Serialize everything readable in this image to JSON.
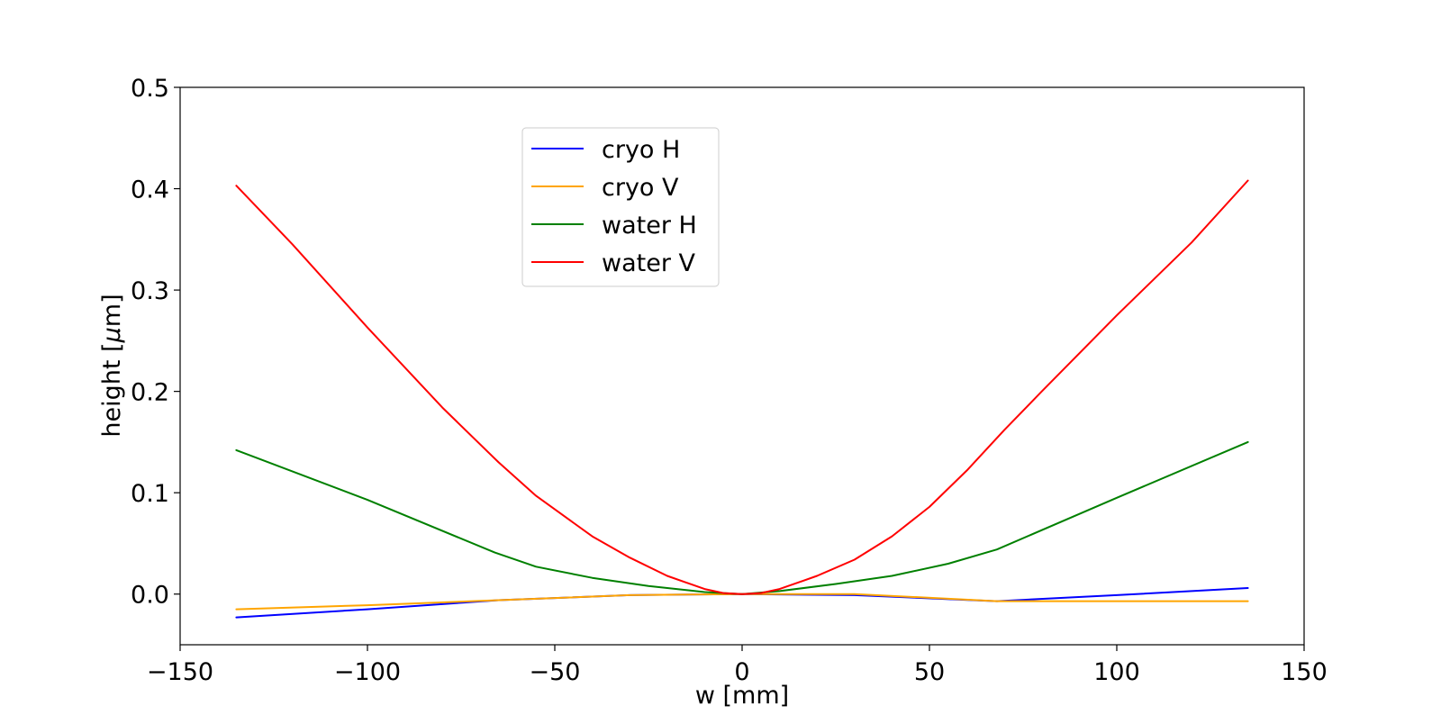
{
  "chart_data": {
    "type": "line",
    "title": "",
    "xlabel": "w [mm]",
    "ylabel_prefix": "height [",
    "ylabel_mu": "μ",
    "ylabel_suffix": "m]",
    "xlim": [
      -150,
      150
    ],
    "ylim": [
      -0.05,
      0.5
    ],
    "xticks": [
      -150,
      -100,
      -50,
      0,
      50,
      100,
      150
    ],
    "xtick_labels": [
      "−150",
      "−100",
      "−50",
      "0",
      "50",
      "100",
      "150"
    ],
    "yticks": [
      0.0,
      0.1,
      0.2,
      0.3,
      0.4,
      0.5
    ],
    "ytick_labels": [
      "0.0",
      "0.1",
      "0.2",
      "0.3",
      "0.4",
      "0.5"
    ],
    "grid": false,
    "legend_position": "upper-center-left",
    "series": [
      {
        "name": "cryo H",
        "color": "#0000ff",
        "x": [
          -135,
          -100,
          -65,
          -30,
          0,
          30,
          68,
          100,
          135
        ],
        "y": [
          -0.023,
          -0.015,
          -0.006,
          -0.001,
          0.0,
          -0.001,
          -0.007,
          -0.001,
          0.006
        ]
      },
      {
        "name": "cryo V",
        "color": "#ffa500",
        "x": [
          -135,
          -100,
          -65,
          -30,
          0,
          30,
          68,
          100,
          135
        ],
        "y": [
          -0.015,
          -0.011,
          -0.006,
          -0.001,
          0.0,
          0.0,
          -0.007,
          -0.007,
          -0.007
        ]
      },
      {
        "name": "water H",
        "color": "#008000",
        "x": [
          -135,
          -100,
          -66,
          -55,
          -40,
          -25,
          -10,
          0,
          10,
          25,
          40,
          55,
          68,
          100,
          135
        ],
        "y": [
          0.142,
          0.093,
          0.041,
          0.027,
          0.016,
          0.008,
          0.002,
          0.0,
          0.003,
          0.01,
          0.018,
          0.03,
          0.044,
          0.095,
          0.15
        ]
      },
      {
        "name": "water V",
        "color": "#ff0000",
        "x": [
          -135,
          -120,
          -100,
          -80,
          -65,
          -55,
          -40,
          -30,
          -20,
          -10,
          -5,
          0,
          5,
          10,
          20,
          30,
          40,
          50,
          60,
          70,
          80,
          100,
          120,
          135
        ],
        "y": [
          0.403,
          0.345,
          0.263,
          0.184,
          0.13,
          0.097,
          0.057,
          0.036,
          0.018,
          0.005,
          0.001,
          0.0,
          0.001,
          0.005,
          0.018,
          0.034,
          0.057,
          0.086,
          0.122,
          0.162,
          0.2,
          0.275,
          0.347,
          0.408
        ]
      }
    ]
  }
}
